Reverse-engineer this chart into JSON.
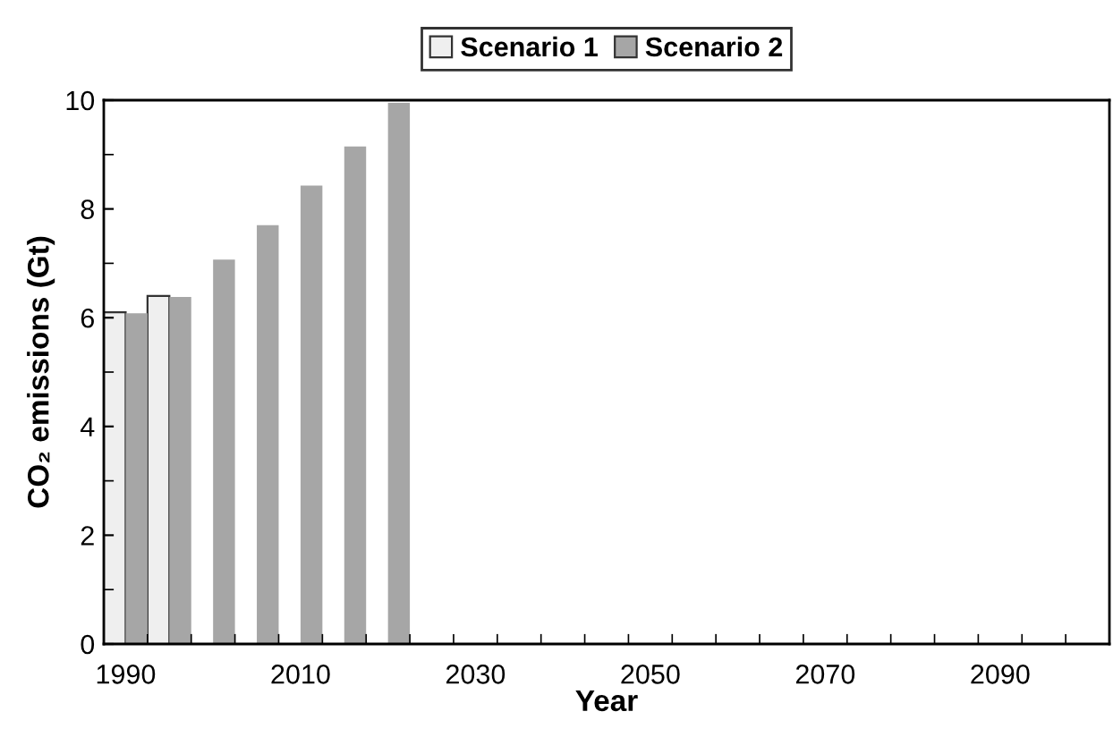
{
  "chart_data": {
    "type": "bar",
    "xlabel": "Year",
    "ylabel": "CO₂ emissions (Gt)",
    "categories": [
      "1990",
      null,
      null,
      null,
      "2010",
      null,
      null,
      null,
      "2030",
      null,
      null,
      null,
      "2050",
      null,
      null,
      null,
      "2070",
      null,
      null,
      null,
      "2090",
      null,
      null
    ],
    "series": [
      {
        "name": "Scenario 1",
        "color": "#efefef",
        "values": [
          6.1,
          6.4,
          null,
          null,
          null,
          null,
          null,
          null,
          null,
          null,
          null,
          null,
          null,
          null,
          null,
          null,
          null,
          null,
          null,
          null,
          null,
          null,
          null
        ]
      },
      {
        "name": "Scenario 2",
        "color": "#a6a6a6",
        "values": [
          6.08,
          6.38,
          7.07,
          7.7,
          8.43,
          9.15,
          9.95,
          null,
          null,
          null,
          null,
          null,
          null,
          null,
          null,
          null,
          null,
          null,
          null,
          null,
          null,
          null,
          null
        ]
      }
    ],
    "ylim": [
      0,
      10
    ],
    "yticks": [
      0,
      2,
      4,
      6,
      8,
      10
    ],
    "grid": false,
    "legend": "top"
  }
}
